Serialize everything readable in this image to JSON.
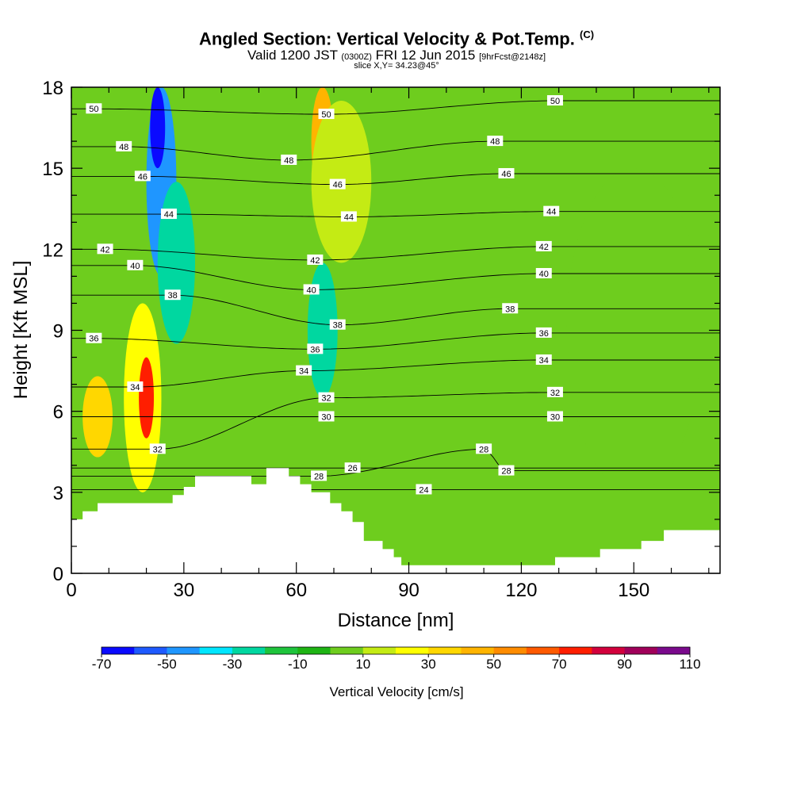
{
  "header": {
    "title": "Angled Section: Vertical Velocity & Pot.Temp.",
    "title_unit": "(C)",
    "subtitle_main": "Valid 1200 JST",
    "subtitle_utc": "(0300Z)",
    "subtitle_date": "FRI 12 Jun 2015",
    "subtitle_fcst": "[9hrFcst@2148z]",
    "slice": "slice X,Y= 34.23@45°"
  },
  "chart_data": {
    "type": "heatmap",
    "title": "Angled Section: Vertical Velocity & Pot.Temp. (C)",
    "xlabel": "Distance [nm]",
    "ylabel": "Height [Kft MSL]",
    "xlim": [
      0,
      173
    ],
    "ylim": [
      0,
      18
    ],
    "xticks": [
      0,
      30,
      60,
      90,
      120,
      150
    ],
    "yticks": [
      0,
      3,
      6,
      9,
      12,
      15,
      18
    ],
    "colorbar": {
      "label": "Vertical Velocity [cm/s]",
      "tick_labels": [
        "-70",
        "-50",
        "-30",
        "-10",
        "10",
        "30",
        "50",
        "70",
        "90",
        "110"
      ],
      "levels": [
        -70,
        -60,
        -50,
        -40,
        -30,
        -20,
        -10,
        0,
        10,
        20,
        30,
        40,
        50,
        60,
        70,
        80,
        90,
        100,
        110
      ],
      "colors": [
        "#0a0aff",
        "#1e5aff",
        "#1f96ff",
        "#00e6ff",
        "#00d7a0",
        "#1ec43c",
        "#1eb414",
        "#6ecd1e",
        "#c4eb14",
        "#ffff00",
        "#ffd700",
        "#ffb400",
        "#ff8c00",
        "#ff5a00",
        "#ff1e00",
        "#d2003c",
        "#a0005a",
        "#7a0a8c"
      ]
    },
    "background_velocity": 0,
    "velocity_regions": [
      {
        "name": "updraft-west",
        "value": 25,
        "center": [
          19,
          6.5
        ],
        "halfwidth": [
          5,
          3.5
        ]
      },
      {
        "name": "updraft-west-core",
        "value": 70,
        "center": [
          20,
          6.5
        ],
        "halfwidth": [
          2,
          1.5
        ]
      },
      {
        "name": "updraft-west-lower",
        "value": 30,
        "center": [
          7,
          5.8
        ],
        "halfwidth": [
          4,
          1.5
        ]
      },
      {
        "name": "downdraft-upper",
        "value": -50,
        "center": [
          24,
          14.5
        ],
        "halfwidth": [
          4,
          3.5
        ]
      },
      {
        "name": "downdraft-upper-core",
        "value": -70,
        "center": [
          23,
          16.5
        ],
        "halfwidth": [
          2,
          1.5
        ]
      },
      {
        "name": "downdraft-mid",
        "value": -30,
        "center": [
          28,
          11.5
        ],
        "halfwidth": [
          5,
          3
        ]
      },
      {
        "name": "downdraft-east",
        "value": -30,
        "center": [
          67,
          9
        ],
        "halfwidth": [
          4,
          2.5
        ]
      },
      {
        "name": "updraft-east-upper",
        "value": 40,
        "center": [
          67,
          16
        ],
        "halfwidth": [
          3,
          2
        ]
      },
      {
        "name": "updraft-east-broad",
        "value": 15,
        "center": [
          72,
          14.5
        ],
        "halfwidth": [
          8,
          3
        ]
      },
      {
        "name": "weak-updraft-east",
        "value": 8,
        "center": [
          150,
          9
        ],
        "halfwidth": [
          18,
          6
        ]
      }
    ],
    "contour_series": [
      {
        "theta": 50,
        "label_points": [
          [
            6,
            17.2
          ],
          [
            68,
            17.0
          ],
          [
            129,
            17.5
          ]
        ]
      },
      {
        "theta": 48,
        "label_points": [
          [
            14,
            15.8
          ],
          [
            58,
            15.3
          ],
          [
            113,
            16.0
          ]
        ]
      },
      {
        "theta": 46,
        "label_points": [
          [
            19,
            14.7
          ],
          [
            71,
            14.4
          ],
          [
            116,
            14.8
          ]
        ]
      },
      {
        "theta": 44,
        "label_points": [
          [
            26,
            13.3
          ],
          [
            74,
            13.2
          ],
          [
            128,
            13.4
          ]
        ]
      },
      {
        "theta": 42,
        "label_points": [
          [
            9,
            12.0
          ],
          [
            65,
            11.6
          ],
          [
            126,
            12.1
          ]
        ]
      },
      {
        "theta": 40,
        "label_points": [
          [
            17,
            11.4
          ],
          [
            64,
            10.5
          ],
          [
            126,
            11.1
          ]
        ]
      },
      {
        "theta": 38,
        "label_points": [
          [
            27,
            10.3
          ],
          [
            71,
            9.2
          ],
          [
            117,
            9.8
          ]
        ]
      },
      {
        "theta": 36,
        "label_points": [
          [
            6,
            8.7
          ],
          [
            65,
            8.3
          ],
          [
            126,
            8.9
          ]
        ]
      },
      {
        "theta": 34,
        "label_points": [
          [
            17,
            6.9
          ],
          [
            62,
            7.5
          ],
          [
            126,
            7.9
          ]
        ]
      },
      {
        "theta": 32,
        "label_points": [
          [
            23,
            4.6
          ],
          [
            68,
            6.5
          ],
          [
            129,
            6.7
          ]
        ]
      },
      {
        "theta": 30,
        "label_points": [
          [
            68,
            5.8
          ],
          [
            129,
            5.8
          ]
        ]
      },
      {
        "theta": 28,
        "label_points": [
          [
            66,
            3.6
          ],
          [
            110,
            4.6
          ],
          [
            116,
            3.8
          ]
        ]
      },
      {
        "theta": 26,
        "label_points": [
          [
            75,
            3.9
          ]
        ]
      },
      {
        "theta": 24,
        "label_points": [
          [
            94,
            3.1
          ]
        ]
      }
    ],
    "terrain": [
      [
        0,
        2.0
      ],
      [
        3,
        2.0
      ],
      [
        3,
        2.3
      ],
      [
        7,
        2.3
      ],
      [
        7,
        2.6
      ],
      [
        20,
        2.6
      ],
      [
        20,
        2.6
      ],
      [
        27,
        2.6
      ],
      [
        27,
        2.9
      ],
      [
        30,
        2.9
      ],
      [
        30,
        3.2
      ],
      [
        33,
        3.2
      ],
      [
        33,
        3.6
      ],
      [
        45,
        3.6
      ],
      [
        45,
        3.6
      ],
      [
        48,
        3.6
      ],
      [
        48,
        3.3
      ],
      [
        52,
        3.3
      ],
      [
        52,
        3.9
      ],
      [
        58,
        3.9
      ],
      [
        58,
        3.6
      ],
      [
        61,
        3.6
      ],
      [
        61,
        3.3
      ],
      [
        64,
        3.3
      ],
      [
        64,
        3.0
      ],
      [
        69,
        3.0
      ],
      [
        69,
        2.6
      ],
      [
        72,
        2.6
      ],
      [
        72,
        2.3
      ],
      [
        75,
        2.3
      ],
      [
        75,
        1.9
      ],
      [
        78,
        1.9
      ],
      [
        78,
        1.2
      ],
      [
        83,
        1.2
      ],
      [
        83,
        0.9
      ],
      [
        86,
        0.9
      ],
      [
        86,
        0.6
      ],
      [
        88,
        0.6
      ],
      [
        88,
        0.3
      ],
      [
        129,
        0.3
      ],
      [
        129,
        0.6
      ],
      [
        141,
        0.6
      ],
      [
        141,
        0.9
      ],
      [
        152,
        0.9
      ],
      [
        152,
        1.2
      ],
      [
        158,
        1.2
      ],
      [
        158,
        1.6
      ],
      [
        173,
        1.6
      ]
    ]
  }
}
